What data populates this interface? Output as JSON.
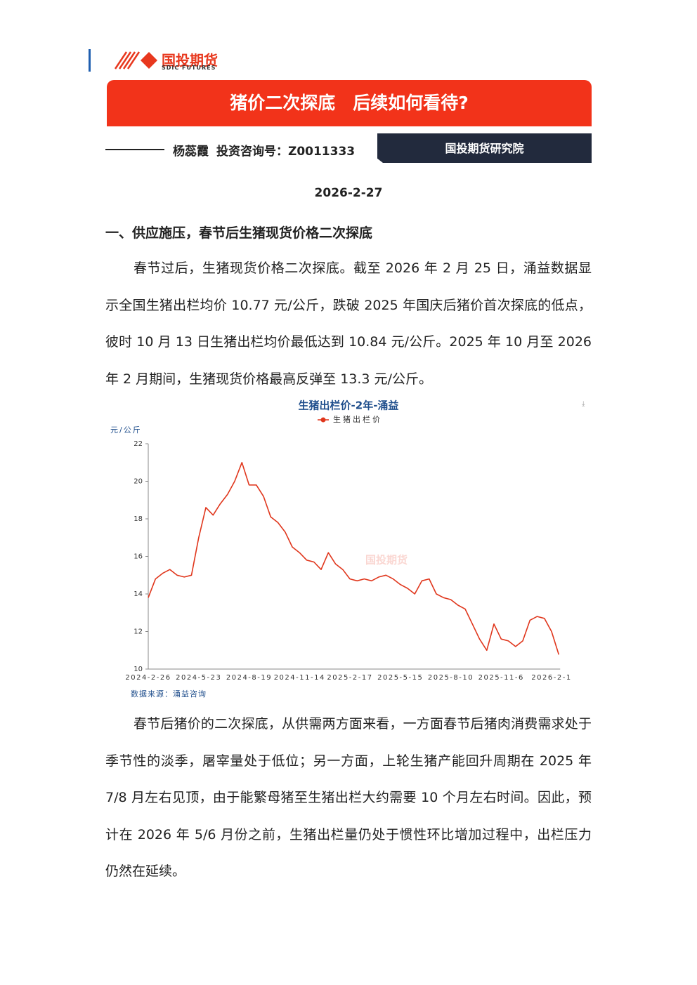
{
  "header": {
    "logo_cn": "国投期货",
    "logo_en": "SDIC FUTURES"
  },
  "title": "猪价二次探底　后续如何看待?",
  "author": "杨蕊霞",
  "license": "投资咨询号：Z0011333",
  "institute": "国投期货研究院",
  "date": "2026-2-27",
  "section_heading": "一、供应施压，春节后生猪现货价格二次探底",
  "paragraphs": [
    "春节过后，生猪现货价格二次探底。截至 2026 年 2 月 25 日，涌益数据显示全国生猪出栏均价 10.77 元/公斤，跌破 2025 年国庆后猪价首次探底的低点，彼时 10 月 13 日生猪出栏均价最低达到 10.84 元/公斤。2025 年 10 月至 2026 年 2 月期间，生猪现货价格最高反弹至 13.3 元/公斤。",
    "春节后猪价的二次探底，从供需两方面来看，一方面春节后猪肉消费需求处于季节性的淡季，屠宰量处于低位；另一方面，上轮生猪产能回升周期在 2025 年 7/8 月左右见顶，由于能繁母猪至生猪出栏大约需要 10 个月左右时间。因此，预计在 2026 年 5/6 月份之前，生猪出栏量仍处于惯性环比增加过程中，出栏压力仍然在延续。"
  ],
  "chart_data": {
    "type": "line",
    "title": "生猪出栏价-2年-涌益",
    "y_label": "元/公斤",
    "source": "数据来源：涌益咨询",
    "watermark": "国投期货",
    "categories": [
      "2024-2-26",
      null,
      null,
      null,
      null,
      null,
      null,
      "2024-5-23",
      null,
      null,
      null,
      null,
      null,
      null,
      "2024-8-19",
      null,
      null,
      null,
      null,
      null,
      null,
      "2024-11-14",
      null,
      null,
      null,
      null,
      null,
      null,
      "2025-2-17",
      null,
      null,
      null,
      null,
      null,
      null,
      "2025-5-15",
      null,
      null,
      null,
      null,
      null,
      null,
      "2025-8-10",
      null,
      null,
      null,
      null,
      null,
      null,
      "2025-11-6",
      null,
      null,
      null,
      null,
      null,
      null,
      "2026-2-1",
      null
    ],
    "series": [
      {
        "name": "生猪出栏价",
        "color": "#e0361c",
        "values": [
          13.8,
          14.8,
          15.1,
          15.3,
          15.0,
          14.9,
          15.0,
          17.0,
          18.6,
          18.2,
          18.8,
          19.3,
          20.0,
          21.0,
          19.8,
          19.8,
          19.2,
          18.1,
          17.8,
          17.3,
          16.5,
          16.2,
          15.8,
          15.7,
          15.3,
          16.2,
          15.6,
          15.3,
          14.8,
          14.7,
          14.8,
          14.7,
          14.9,
          15.0,
          14.8,
          14.5,
          14.3,
          14.0,
          14.7,
          14.8,
          14.0,
          13.8,
          13.7,
          13.4,
          13.2,
          12.4,
          11.6,
          11.0,
          12.4,
          11.6,
          11.5,
          11.2,
          11.5,
          12.6,
          12.8,
          12.7,
          12.0,
          10.77
        ]
      }
    ],
    "ylim": [
      10,
      22
    ],
    "yticks": [
      10,
      12,
      14,
      16,
      18,
      20,
      22
    ]
  }
}
